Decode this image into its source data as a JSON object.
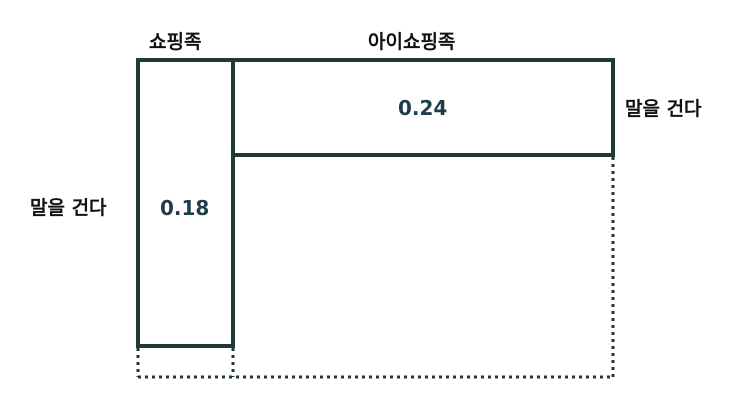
{
  "diagram": {
    "top_left_label": "쇼핑족",
    "top_right_label": "아이쇼핑족",
    "left_side_label": "말을 건다",
    "right_side_label": "말을 건다",
    "left_column_value": "0.18",
    "top_row_value": "0.24",
    "colors": {
      "outline": "#1f3a38",
      "value_text": "#1d3d4a",
      "label_text": "#111111"
    }
  }
}
